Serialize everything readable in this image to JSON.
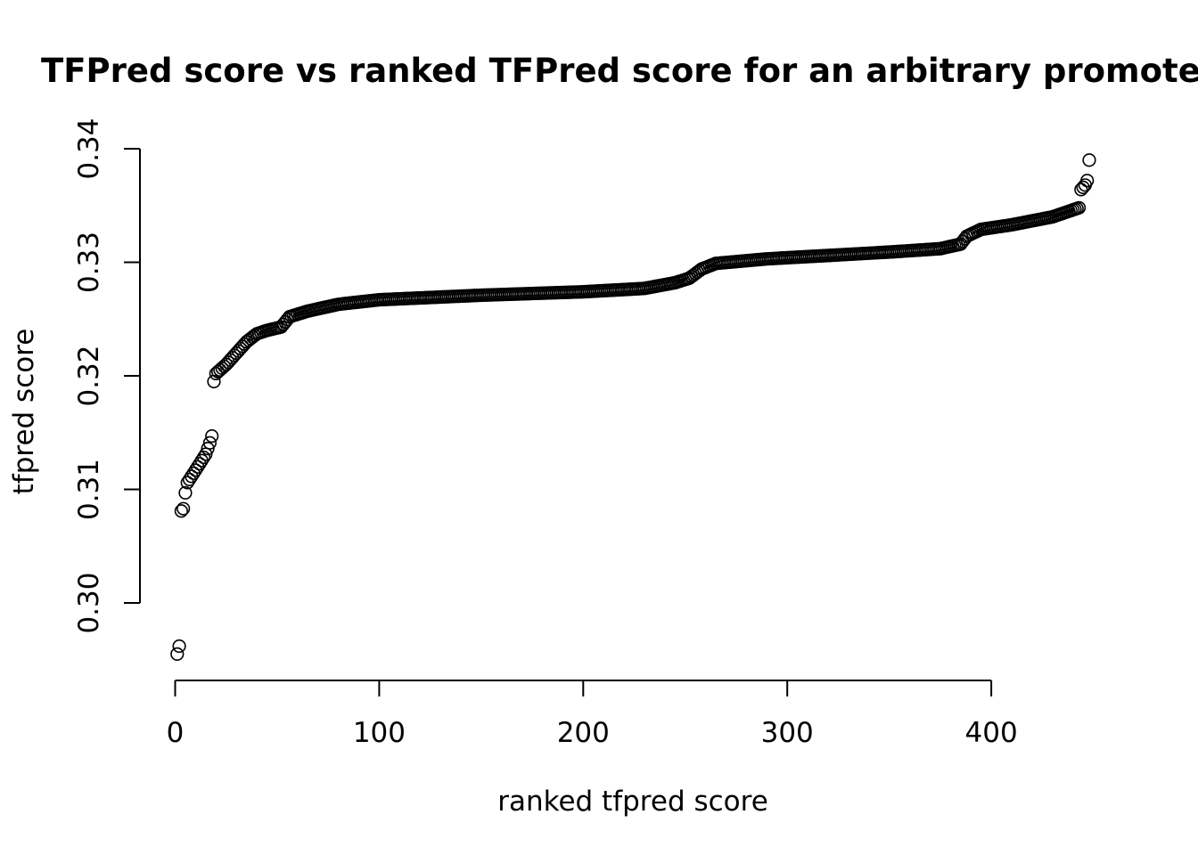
{
  "chart_data": {
    "type": "scatter",
    "title": "TFPred score vs ranked TFPred score for an arbitrary promoter region",
    "xlabel": "ranked tfpred score",
    "ylabel": "tfpred score",
    "xlim": [
      0,
      450
    ],
    "ylim": [
      0.295,
      0.339
    ],
    "x_ticks": [
      0,
      100,
      200,
      300,
      400
    ],
    "y_ticks": [
      0.3,
      0.31,
      0.32,
      0.33,
      0.34
    ],
    "x_tick_labels": [
      "0",
      "100",
      "200",
      "300",
      "400"
    ],
    "y_tick_labels": [
      "0.30",
      "0.31",
      "0.32",
      "0.33",
      "0.34"
    ],
    "n_points": 448,
    "marker": "open-circle",
    "grid": false,
    "series": [
      {
        "rank_score_profile": [
          [
            1,
            0.2955
          ],
          [
            2,
            0.2962
          ],
          [
            3,
            0.3081
          ],
          [
            4,
            0.3083
          ],
          [
            5,
            0.3097
          ],
          [
            6,
            0.3106
          ],
          [
            10,
            0.3117
          ],
          [
            15,
            0.3131
          ],
          [
            17,
            0.3141
          ],
          [
            18,
            0.3147
          ],
          [
            19,
            0.3195
          ],
          [
            20,
            0.3202
          ],
          [
            25,
            0.321
          ],
          [
            30,
            0.322
          ],
          [
            35,
            0.323
          ],
          [
            40,
            0.3237
          ],
          [
            45,
            0.324
          ],
          [
            52,
            0.3243
          ],
          [
            56,
            0.3252
          ],
          [
            65,
            0.3257
          ],
          [
            80,
            0.3263
          ],
          [
            100,
            0.3267
          ],
          [
            150,
            0.3271
          ],
          [
            200,
            0.3274
          ],
          [
            230,
            0.3277
          ],
          [
            245,
            0.3282
          ],
          [
            252,
            0.3286
          ],
          [
            258,
            0.3294
          ],
          [
            265,
            0.3299
          ],
          [
            290,
            0.3303
          ],
          [
            320,
            0.3306
          ],
          [
            350,
            0.3309
          ],
          [
            375,
            0.3312
          ],
          [
            385,
            0.3316
          ],
          [
            388,
            0.3323
          ],
          [
            395,
            0.3329
          ],
          [
            410,
            0.3333
          ],
          [
            430,
            0.334
          ],
          [
            443,
            0.3348
          ],
          [
            444,
            0.3364
          ],
          [
            445,
            0.3366
          ],
          [
            446,
            0.3368
          ],
          [
            447,
            0.3372
          ],
          [
            448,
            0.339
          ]
        ]
      }
    ]
  }
}
